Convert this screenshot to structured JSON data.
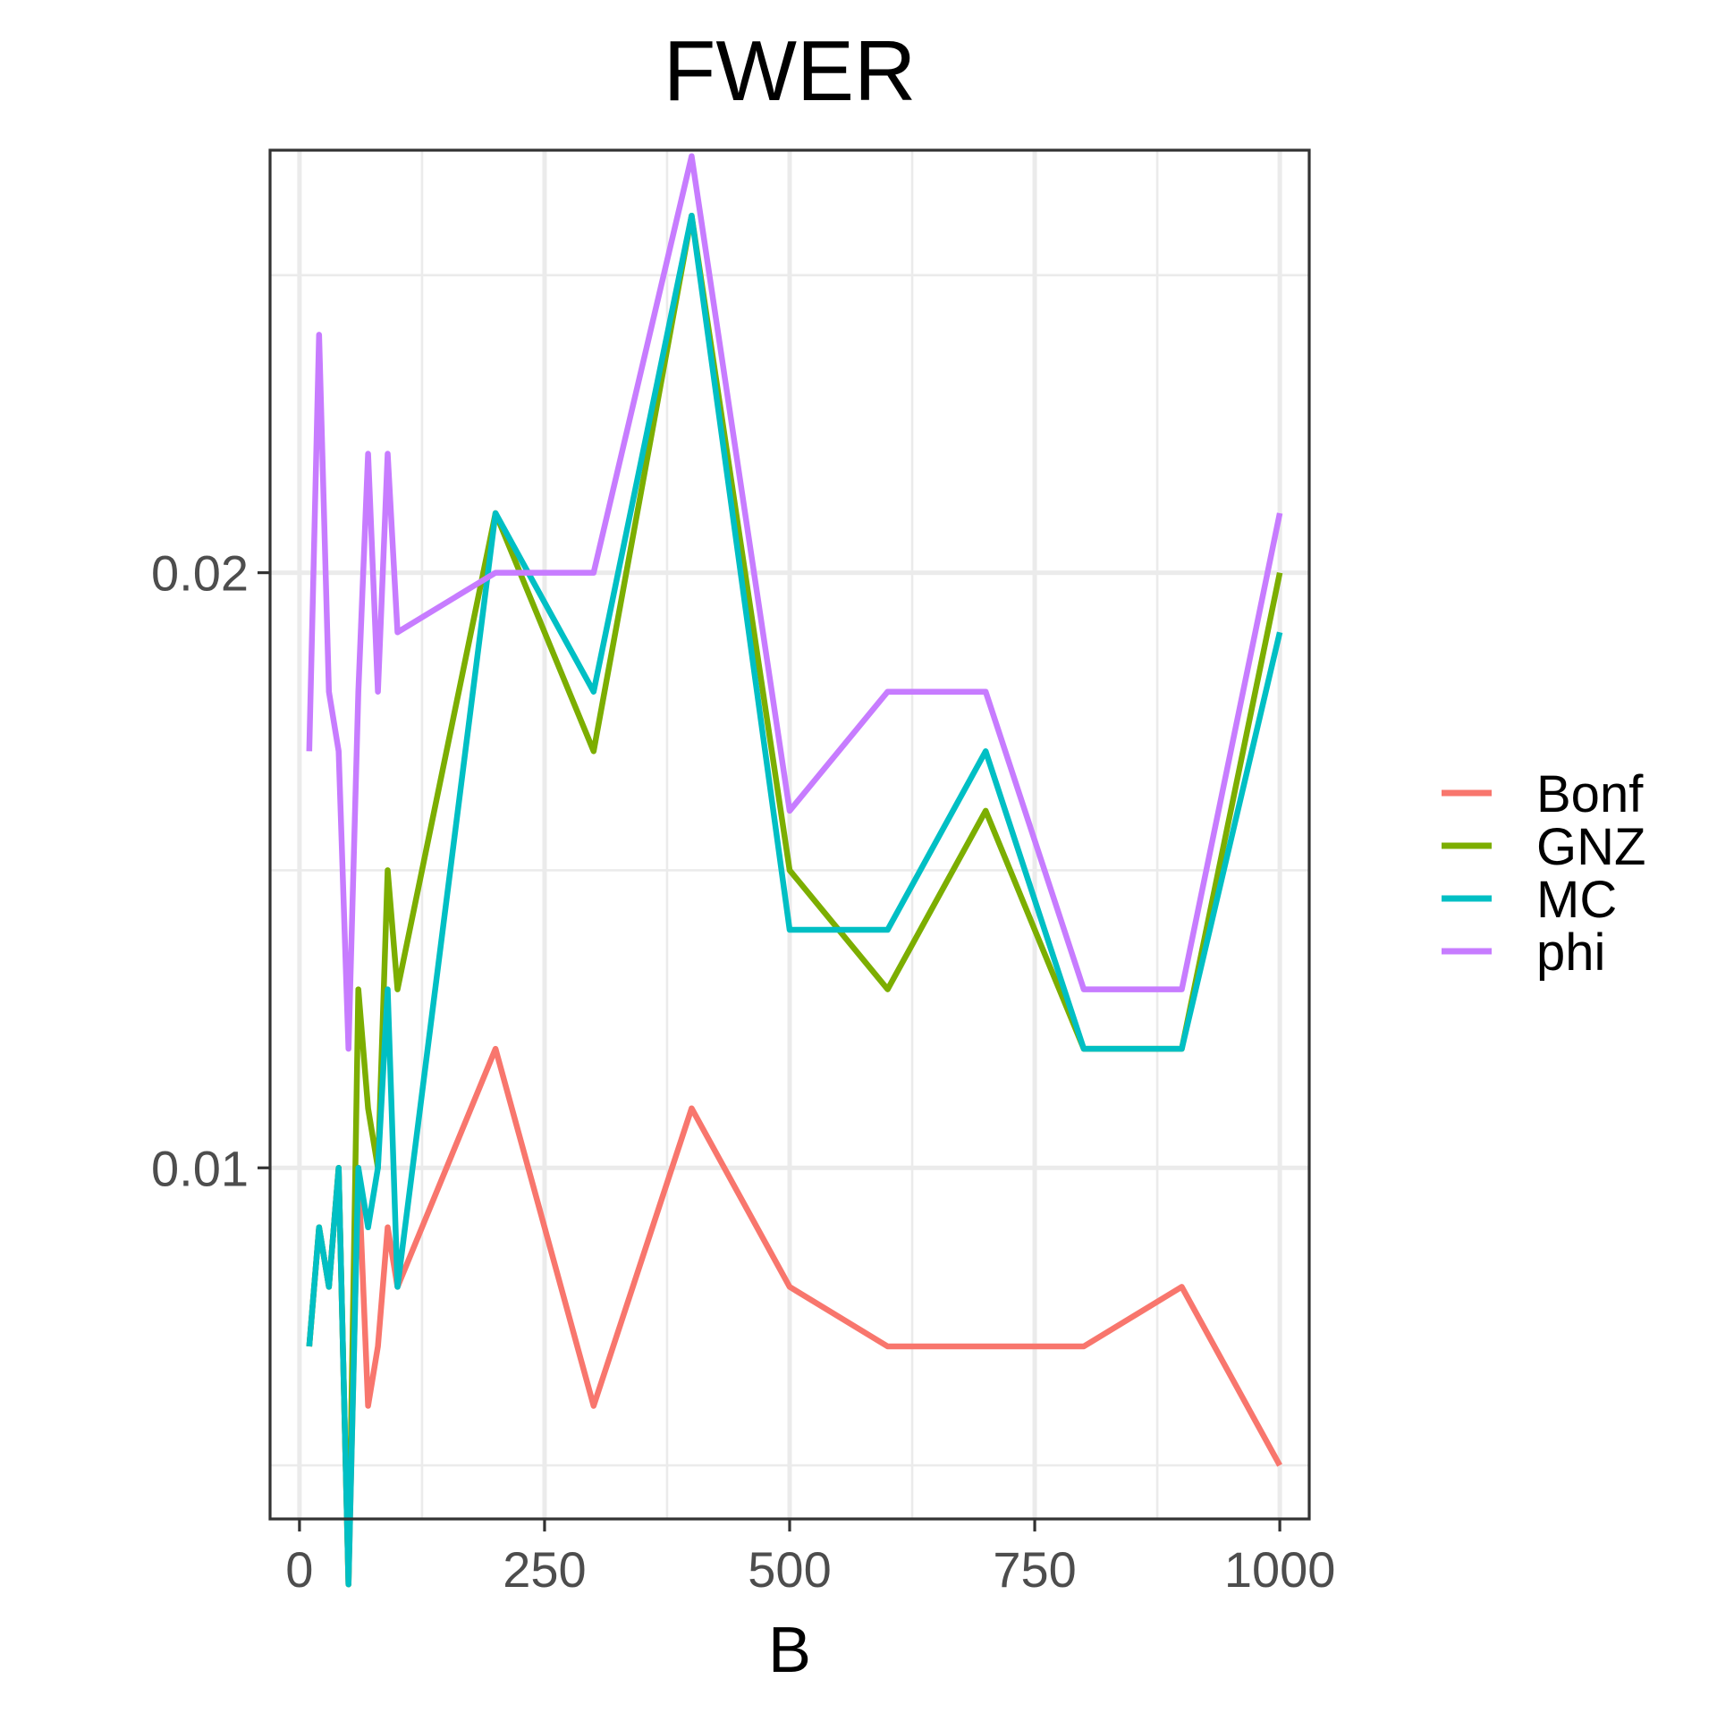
{
  "chart_data": {
    "type": "line",
    "title": "FWER",
    "xlabel": "B",
    "ylabel": "",
    "xlim": [
      -30,
      1030
    ],
    "ylim": [
      0.0041,
      0.0271
    ],
    "x_ticks": [
      0,
      250,
      500,
      750,
      1000
    ],
    "x_tick_labels": [
      "0",
      "250",
      "500",
      "750",
      "1000"
    ],
    "x_minor_ticks": [
      125,
      375,
      625,
      875
    ],
    "y_ticks": [
      0.01,
      0.02
    ],
    "y_tick_labels": [
      "0.01",
      "0.02"
    ],
    "y_minor_ticks": [
      0.005,
      0.015,
      0.025
    ],
    "grid": true,
    "legend_position": "right",
    "series": [
      {
        "name": "Bonf",
        "color": "#F8766D",
        "x": [
          10,
          20,
          30,
          40,
          50,
          60,
          70,
          80,
          90,
          100,
          200,
          300,
          400,
          500,
          600,
          700,
          800,
          900,
          1000
        ],
        "y": [
          0.007,
          0.009,
          0.008,
          0.01,
          0.003,
          0.01,
          0.006,
          0.007,
          0.009,
          0.008,
          0.012,
          0.006,
          0.011,
          0.008,
          0.007,
          0.007,
          0.007,
          0.008,
          0.005
        ]
      },
      {
        "name": "GNZ",
        "color": "#7CAE00",
        "x": [
          10,
          20,
          30,
          40,
          50,
          60,
          70,
          80,
          90,
          100,
          200,
          300,
          400,
          500,
          600,
          700,
          800,
          900,
          1000
        ],
        "y": [
          0.007,
          0.009,
          0.008,
          0.01,
          0.003,
          0.013,
          0.011,
          0.01,
          0.015,
          0.013,
          0.021,
          0.017,
          0.026,
          0.015,
          0.013,
          0.016,
          0.012,
          0.012,
          0.02
        ]
      },
      {
        "name": "MC",
        "color": "#00BFC4",
        "x": [
          10,
          20,
          30,
          40,
          50,
          60,
          70,
          80,
          90,
          100,
          200,
          300,
          400,
          500,
          600,
          700,
          800,
          900,
          1000
        ],
        "y": [
          0.007,
          0.009,
          0.008,
          0.01,
          0.003,
          0.01,
          0.009,
          0.01,
          0.013,
          0.008,
          0.021,
          0.018,
          0.026,
          0.014,
          0.014,
          0.017,
          0.012,
          0.012,
          0.019
        ]
      },
      {
        "name": "phi",
        "color": "#C77CFF",
        "x": [
          10,
          20,
          30,
          40,
          50,
          60,
          70,
          80,
          90,
          100,
          200,
          300,
          400,
          500,
          600,
          700,
          800,
          900,
          1000
        ],
        "y": [
          0.017,
          0.024,
          0.018,
          0.017,
          0.012,
          0.018,
          0.022,
          0.018,
          0.022,
          0.019,
          0.02,
          0.02,
          0.027,
          0.016,
          0.018,
          0.018,
          0.013,
          0.013,
          0.021
        ]
      }
    ]
  }
}
